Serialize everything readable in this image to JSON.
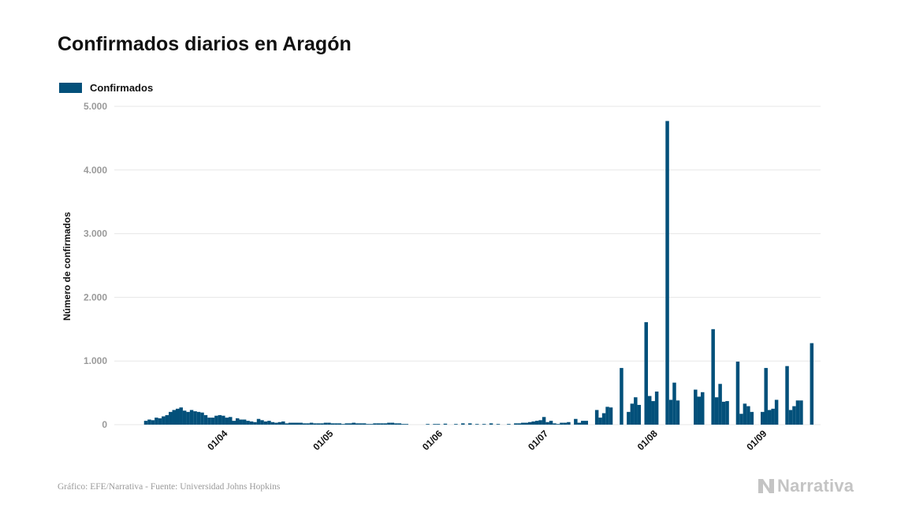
{
  "title": "Confirmados diarios en Aragón",
  "source": "Gráfico: EFE/Narrativa - Fuente: Universidad Johns Hopkins",
  "logo_text": "Narrativa",
  "colors": {
    "bar": "#03507a",
    "grid": "#e7e7e7",
    "tick": "#9a9a9a",
    "text": "#111111"
  },
  "chart_data": {
    "type": "bar",
    "title": "Confirmados diarios en Aragón",
    "xlabel": "",
    "ylabel": "Número de confirmados",
    "ylim": [
      0,
      5000
    ],
    "yticks": [
      0,
      1000,
      2000,
      3000,
      4000,
      5000
    ],
    "ytick_labels": [
      "0",
      "1.000",
      "2.000",
      "3.000",
      "4.000",
      "5.000"
    ],
    "xtick_labels": [
      "01/04",
      "01/05",
      "01/06",
      "01/07",
      "01/08",
      "01/09"
    ],
    "xtick_dates": [
      "2020-04-01",
      "2020-05-01",
      "2020-06-01",
      "2020-07-01",
      "2020-08-01",
      "2020-09-01"
    ],
    "grid": true,
    "legend_position": "top-left",
    "series": [
      {
        "name": "Confirmados",
        "points": [
          [
            "2020-03-10",
            60
          ],
          [
            "2020-03-11",
            80
          ],
          [
            "2020-03-12",
            70
          ],
          [
            "2020-03-13",
            110
          ],
          [
            "2020-03-14",
            100
          ],
          [
            "2020-03-15",
            130
          ],
          [
            "2020-03-16",
            150
          ],
          [
            "2020-03-17",
            200
          ],
          [
            "2020-03-18",
            230
          ],
          [
            "2020-03-19",
            250
          ],
          [
            "2020-03-20",
            270
          ],
          [
            "2020-03-21",
            220
          ],
          [
            "2020-03-22",
            200
          ],
          [
            "2020-03-23",
            230
          ],
          [
            "2020-03-24",
            210
          ],
          [
            "2020-03-25",
            200
          ],
          [
            "2020-03-26",
            190
          ],
          [
            "2020-03-27",
            150
          ],
          [
            "2020-03-28",
            110
          ],
          [
            "2020-03-29",
            110
          ],
          [
            "2020-03-30",
            140
          ],
          [
            "2020-03-31",
            150
          ],
          [
            "2020-04-01",
            140
          ],
          [
            "2020-04-02",
            110
          ],
          [
            "2020-04-03",
            120
          ],
          [
            "2020-04-04",
            60
          ],
          [
            "2020-04-05",
            100
          ],
          [
            "2020-04-06",
            80
          ],
          [
            "2020-04-07",
            80
          ],
          [
            "2020-04-08",
            60
          ],
          [
            "2020-04-09",
            50
          ],
          [
            "2020-04-10",
            40
          ],
          [
            "2020-04-11",
            90
          ],
          [
            "2020-04-12",
            70
          ],
          [
            "2020-04-13",
            50
          ],
          [
            "2020-04-14",
            60
          ],
          [
            "2020-04-15",
            40
          ],
          [
            "2020-04-16",
            30
          ],
          [
            "2020-04-17",
            40
          ],
          [
            "2020-04-18",
            50
          ],
          [
            "2020-04-19",
            20
          ],
          [
            "2020-04-20",
            30
          ],
          [
            "2020-04-21",
            30
          ],
          [
            "2020-04-22",
            30
          ],
          [
            "2020-04-23",
            30
          ],
          [
            "2020-04-24",
            20
          ],
          [
            "2020-04-25",
            20
          ],
          [
            "2020-04-26",
            30
          ],
          [
            "2020-04-27",
            20
          ],
          [
            "2020-04-28",
            20
          ],
          [
            "2020-04-29",
            20
          ],
          [
            "2020-04-30",
            30
          ],
          [
            "2020-05-01",
            30
          ],
          [
            "2020-05-02",
            20
          ],
          [
            "2020-05-03",
            20
          ],
          [
            "2020-05-04",
            20
          ],
          [
            "2020-05-05",
            10
          ],
          [
            "2020-05-06",
            20
          ],
          [
            "2020-05-07",
            20
          ],
          [
            "2020-05-08",
            30
          ],
          [
            "2020-05-09",
            20
          ],
          [
            "2020-05-10",
            20
          ],
          [
            "2020-05-11",
            20
          ],
          [
            "2020-05-12",
            10
          ],
          [
            "2020-05-13",
            10
          ],
          [
            "2020-05-14",
            20
          ],
          [
            "2020-05-15",
            20
          ],
          [
            "2020-05-16",
            20
          ],
          [
            "2020-05-17",
            20
          ],
          [
            "2020-05-18",
            30
          ],
          [
            "2020-05-19",
            30
          ],
          [
            "2020-05-20",
            20
          ],
          [
            "2020-05-21",
            20
          ],
          [
            "2020-05-22",
            10
          ],
          [
            "2020-05-23",
            10
          ],
          [
            "2020-05-29",
            10
          ],
          [
            "2020-05-31",
            10
          ],
          [
            "2020-06-01",
            10
          ],
          [
            "2020-06-03",
            15
          ],
          [
            "2020-06-06",
            10
          ],
          [
            "2020-06-08",
            20
          ],
          [
            "2020-06-10",
            20
          ],
          [
            "2020-06-12",
            10
          ],
          [
            "2020-06-14",
            10
          ],
          [
            "2020-06-16",
            20
          ],
          [
            "2020-06-18",
            10
          ],
          [
            "2020-06-21",
            10
          ],
          [
            "2020-06-23",
            20
          ],
          [
            "2020-06-24",
            20
          ],
          [
            "2020-06-25",
            30
          ],
          [
            "2020-06-26",
            30
          ],
          [
            "2020-06-27",
            40
          ],
          [
            "2020-06-28",
            50
          ],
          [
            "2020-06-29",
            60
          ],
          [
            "2020-06-30",
            70
          ],
          [
            "2020-07-01",
            120
          ],
          [
            "2020-07-02",
            40
          ],
          [
            "2020-07-03",
            60
          ],
          [
            "2020-07-04",
            20
          ],
          [
            "2020-07-05",
            10
          ],
          [
            "2020-07-06",
            30
          ],
          [
            "2020-07-07",
            30
          ],
          [
            "2020-07-08",
            40
          ],
          [
            "2020-07-10",
            90
          ],
          [
            "2020-07-11",
            30
          ],
          [
            "2020-07-12",
            60
          ],
          [
            "2020-07-13",
            60
          ],
          [
            "2020-07-16",
            230
          ],
          [
            "2020-07-17",
            110
          ],
          [
            "2020-07-18",
            180
          ],
          [
            "2020-07-19",
            280
          ],
          [
            "2020-07-20",
            270
          ],
          [
            "2020-07-23",
            890
          ],
          [
            "2020-07-25",
            200
          ],
          [
            "2020-07-26",
            330
          ],
          [
            "2020-07-27",
            430
          ],
          [
            "2020-07-28",
            310
          ],
          [
            "2020-07-30",
            1610
          ],
          [
            "2020-07-31",
            450
          ],
          [
            "2020-08-01",
            370
          ],
          [
            "2020-08-02",
            520
          ],
          [
            "2020-08-05",
            4770
          ],
          [
            "2020-08-06",
            390
          ],
          [
            "2020-08-07",
            660
          ],
          [
            "2020-08-08",
            380
          ],
          [
            "2020-08-13",
            550
          ],
          [
            "2020-08-14",
            440
          ],
          [
            "2020-08-15",
            510
          ],
          [
            "2020-08-18",
            1500
          ],
          [
            "2020-08-19",
            430
          ],
          [
            "2020-08-20",
            640
          ],
          [
            "2020-08-21",
            360
          ],
          [
            "2020-08-22",
            370
          ],
          [
            "2020-08-25",
            990
          ],
          [
            "2020-08-26",
            170
          ],
          [
            "2020-08-27",
            330
          ],
          [
            "2020-08-28",
            290
          ],
          [
            "2020-08-29",
            200
          ],
          [
            "2020-09-01",
            200
          ],
          [
            "2020-09-02",
            890
          ],
          [
            "2020-09-03",
            230
          ],
          [
            "2020-09-04",
            250
          ],
          [
            "2020-09-05",
            390
          ],
          [
            "2020-09-08",
            920
          ],
          [
            "2020-09-09",
            230
          ],
          [
            "2020-09-10",
            290
          ],
          [
            "2020-09-11",
            380
          ],
          [
            "2020-09-12",
            380
          ],
          [
            "2020-09-15",
            1280
          ]
        ]
      }
    ]
  }
}
